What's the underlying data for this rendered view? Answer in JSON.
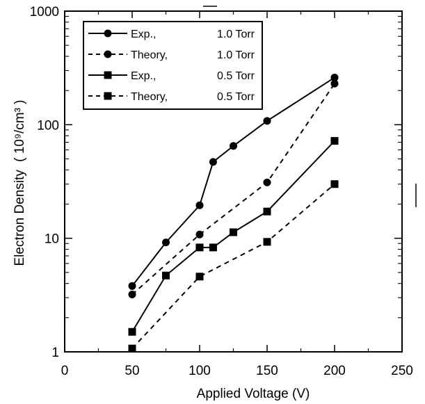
{
  "chart_data": {
    "type": "line",
    "title": "",
    "xlabel": "Applied Voltage (V)",
    "ylabel_main": "Electron Density",
    "ylabel_units": "( 10⁹/cm³ )",
    "xlim": [
      0,
      250
    ],
    "ylim": [
      1,
      1000
    ],
    "yscale": "log",
    "grid": false,
    "legend_position": "top-left",
    "x_ticks": [
      0,
      50,
      100,
      150,
      200,
      250
    ],
    "x_tick_labels": [
      "0",
      "50",
      "100",
      "150",
      "200",
      "250"
    ],
    "y_ticks": [
      1,
      10,
      100,
      1000
    ],
    "y_tick_labels": [
      "1",
      "10",
      "100",
      "1000"
    ],
    "series": [
      {
        "name": "Exp., 1.0 Torr",
        "legend_left": "Exp.,",
        "legend_right": "1.0 Torr",
        "line": "solid",
        "marker": "circle",
        "x": [
          50,
          75,
          100,
          110,
          125,
          150,
          200
        ],
        "y": [
          3.8,
          9.2,
          19.5,
          47,
          65,
          108,
          260
        ]
      },
      {
        "name": "Theory, 1.0 Torr",
        "legend_left": "Theory,",
        "legend_right": "1.0 Torr",
        "line": "dashed",
        "marker": "circle",
        "x": [
          50,
          100,
          150,
          200
        ],
        "y": [
          3.2,
          10.8,
          31,
          230
        ]
      },
      {
        "name": "Exp., 0.5 Torr",
        "legend_left": "Exp.,",
        "legend_right": "0.5 Torr",
        "line": "solid",
        "marker": "square",
        "x": [
          50,
          75,
          100,
          110,
          125,
          150,
          200
        ],
        "y": [
          1.5,
          4.7,
          8.3,
          8.3,
          11.3,
          17.2,
          72
        ]
      },
      {
        "name": "Theory, 0.5 Torr",
        "legend_left": "Theory,",
        "legend_right": "0.5 Torr",
        "line": "dashed",
        "marker": "square",
        "x": [
          50,
          100,
          150,
          200
        ],
        "y": [
          1.07,
          4.6,
          9.3,
          30
        ]
      }
    ]
  }
}
